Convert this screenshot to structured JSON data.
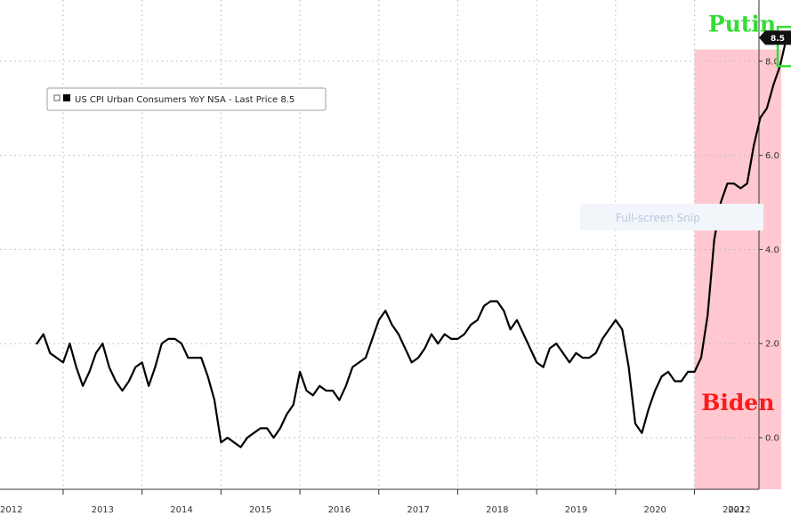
{
  "chart_data": {
    "type": "line",
    "title": "",
    "xlabel": "",
    "ylabel": "",
    "ylim": [
      -0.8,
      9.2
    ],
    "y_ticks": [
      "0.0",
      "2.0",
      "4.0",
      "6.0",
      "8.0"
    ],
    "x_tick_labels": [
      "2012",
      "2013",
      "2014",
      "2015",
      "2016",
      "2017",
      "2018",
      "2019",
      "2020",
      "2021",
      "2022"
    ],
    "grid": true,
    "legend": {
      "position": "top-left",
      "text": "US CPI Urban Consumers YoY NSA - Last Price 8.5"
    },
    "last_price_label": "8.5",
    "series": [
      {
        "name": "US CPI Urban Consumers YoY NSA",
        "color": "#000000",
        "x": [
          "2012-09",
          "2012-10",
          "2012-11",
          "2012-12",
          "2013-01",
          "2013-02",
          "2013-03",
          "2013-04",
          "2013-05",
          "2013-06",
          "2013-07",
          "2013-08",
          "2013-09",
          "2013-10",
          "2013-11",
          "2013-12",
          "2014-01",
          "2014-02",
          "2014-03",
          "2014-04",
          "2014-05",
          "2014-06",
          "2014-07",
          "2014-08",
          "2014-09",
          "2014-10",
          "2014-11",
          "2014-12",
          "2015-01",
          "2015-02",
          "2015-03",
          "2015-04",
          "2015-05",
          "2015-06",
          "2015-07",
          "2015-08",
          "2015-09",
          "2015-10",
          "2015-11",
          "2015-12",
          "2016-01",
          "2016-02",
          "2016-03",
          "2016-04",
          "2016-05",
          "2016-06",
          "2016-07",
          "2016-08",
          "2016-09",
          "2016-10",
          "2016-11",
          "2016-12",
          "2017-01",
          "2017-02",
          "2017-03",
          "2017-04",
          "2017-05",
          "2017-06",
          "2017-07",
          "2017-08",
          "2017-09",
          "2017-10",
          "2017-11",
          "2017-12",
          "2018-01",
          "2018-02",
          "2018-03",
          "2018-04",
          "2018-05",
          "2018-06",
          "2018-07",
          "2018-08",
          "2018-09",
          "2018-10",
          "2018-11",
          "2018-12",
          "2019-01",
          "2019-02",
          "2019-03",
          "2019-04",
          "2019-05",
          "2019-06",
          "2019-07",
          "2019-08",
          "2019-09",
          "2019-10",
          "2019-11",
          "2019-12",
          "2020-01",
          "2020-02",
          "2020-03",
          "2020-04",
          "2020-05",
          "2020-06",
          "2020-07",
          "2020-08",
          "2020-09",
          "2020-10",
          "2020-11",
          "2020-12",
          "2021-01",
          "2021-02",
          "2021-03",
          "2021-04",
          "2021-05",
          "2021-06",
          "2021-07",
          "2021-08",
          "2021-09",
          "2021-10",
          "2021-11",
          "2021-12",
          "2022-01",
          "2022-02",
          "2022-03"
        ],
        "values": [
          2.0,
          2.2,
          1.8,
          1.7,
          1.6,
          2.0,
          1.5,
          1.1,
          1.4,
          1.8,
          2.0,
          1.5,
          1.2,
          1.0,
          1.2,
          1.5,
          1.6,
          1.1,
          1.5,
          2.0,
          2.1,
          2.1,
          2.0,
          1.7,
          1.7,
          1.7,
          1.3,
          0.8,
          -0.1,
          0.0,
          -0.1,
          -0.2,
          0.0,
          0.1,
          0.2,
          0.2,
          0.0,
          0.2,
          0.5,
          0.7,
          1.4,
          1.0,
          0.9,
          1.1,
          1.0,
          1.0,
          0.8,
          1.1,
          1.5,
          1.6,
          1.7,
          2.1,
          2.5,
          2.7,
          2.4,
          2.2,
          1.9,
          1.6,
          1.7,
          1.9,
          2.2,
          2.0,
          2.2,
          2.1,
          2.1,
          2.2,
          2.4,
          2.5,
          2.8,
          2.9,
          2.9,
          2.7,
          2.3,
          2.5,
          2.2,
          1.9,
          1.6,
          1.5,
          1.9,
          2.0,
          1.8,
          1.6,
          1.8,
          1.7,
          1.7,
          1.8,
          2.1,
          2.3,
          2.5,
          2.3,
          1.5,
          0.3,
          0.1,
          0.6,
          1.0,
          1.3,
          1.4,
          1.2,
          1.2,
          1.4,
          1.4,
          1.7,
          2.6,
          4.2,
          5.0,
          5.4,
          5.4,
          5.3,
          5.4,
          6.2,
          6.8,
          7.0,
          7.5,
          7.9,
          8.5
        ]
      }
    ],
    "annotations": [
      {
        "text": "Putin",
        "color": "#33dd33",
        "covers": [
          "2022-03",
          "2022-03"
        ]
      },
      {
        "text": "Biden",
        "color": "#ff1a1a",
        "shaded_from": "2021-01",
        "shaded_to": "2022-03",
        "shade_color": "#ffc8d0",
        "shade_top_value": 8.25
      }
    ],
    "watermark": "Full-screen Snip"
  }
}
